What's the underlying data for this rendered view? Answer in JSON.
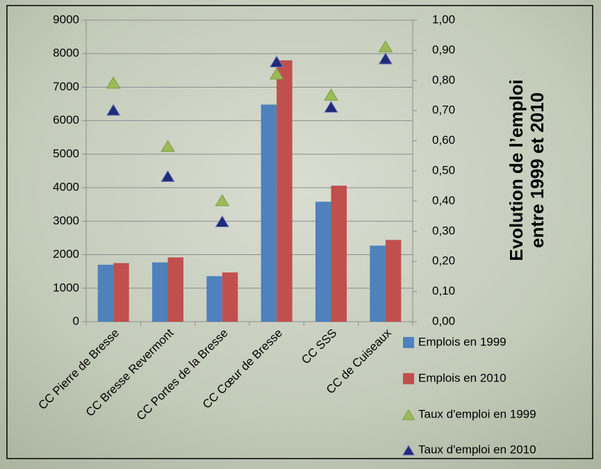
{
  "chart_data": {
    "type": "bar",
    "categories": [
      "CC Pierre de Bresse",
      "CC Bresse Revermont",
      "CC Portes de la Bresse",
      "CC Cœur de Bresse",
      "CC SSS",
      "CC de Cuiseaux"
    ],
    "series": [
      {
        "name": "Emplois en 1999",
        "type": "bar",
        "color": "#4f81bd",
        "values": [
          1700,
          1770,
          1360,
          6480,
          3580,
          2270
        ]
      },
      {
        "name": "Emplois en 2010",
        "type": "bar",
        "color": "#c0504d",
        "values": [
          1750,
          1920,
          1470,
          7800,
          4060,
          2440
        ]
      },
      {
        "name": "Taux d'emploi en 1999",
        "type": "scatter",
        "axis": "y2",
        "color": "#9bbb59",
        "values": [
          0.79,
          0.58,
          0.4,
          0.82,
          0.75,
          0.91
        ]
      },
      {
        "name": "Taux d'emploi en 2010",
        "type": "scatter",
        "axis": "y2",
        "color": "#1f2a78",
        "values": [
          0.7,
          0.48,
          0.33,
          0.86,
          0.71,
          0.87
        ]
      }
    ],
    "ylim": [
      0,
      9000
    ],
    "yticks": [
      0,
      1000,
      2000,
      3000,
      4000,
      5000,
      6000,
      7000,
      8000,
      9000
    ],
    "y2lim": [
      0,
      1
    ],
    "y2ticks": [
      {
        "value": 0,
        "label": "0,00"
      },
      {
        "value": 0.1,
        "label": "0,10"
      },
      {
        "value": 0.2,
        "label": "0,20"
      },
      {
        "value": 0.3,
        "label": "0,30"
      },
      {
        "value": 0.4,
        "label": "0,40"
      },
      {
        "value": 0.5,
        "label": "0,50"
      },
      {
        "value": 0.6,
        "label": "0,60"
      },
      {
        "value": 0.7,
        "label": "0,70"
      },
      {
        "value": 0.8,
        "label": "0,80"
      },
      {
        "value": 0.9,
        "label": "0,90"
      },
      {
        "value": 1,
        "label": "1,00"
      }
    ],
    "y2_label": [
      "Evolution de l’emploi",
      "entre 1999 et 2010"
    ],
    "grid": true,
    "legend": "bottom-right"
  }
}
